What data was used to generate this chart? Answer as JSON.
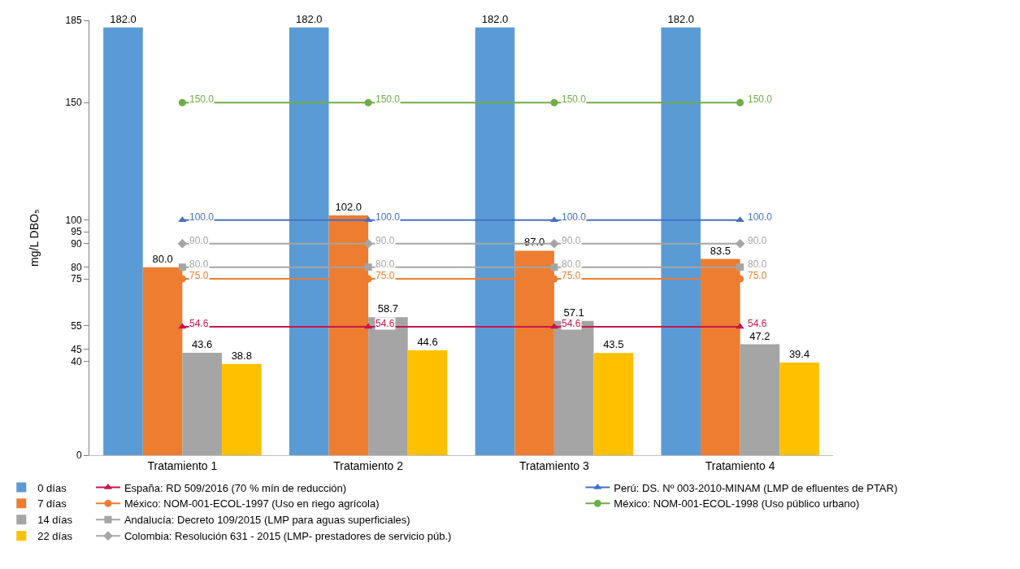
{
  "chart_data": {
    "type": "bar",
    "ylabel": "mg/L DBO₅",
    "categories": [
      "Tratamiento 1",
      "Tratamiento 2",
      "Tratamiento 3",
      "Tratamiento 4"
    ],
    "series": [
      {
        "name": "0 días",
        "color": "#5b9bd5",
        "values": [
          182.0,
          182.0,
          182.0,
          182.0
        ],
        "value_labels": [
          "182.0",
          "182.0",
          "182.0",
          "182.0"
        ]
      },
      {
        "name": "7 días",
        "color": "#ed7d31",
        "values": [
          80.0,
          102.0,
          87.0,
          83.5
        ],
        "value_labels": [
          "80.0",
          "102.0",
          "87.0",
          "83.5"
        ]
      },
      {
        "name": "14 días",
        "color": "#a5a5a5",
        "values": [
          43.6,
          58.7,
          57.1,
          47.2
        ],
        "value_labels": [
          "43.6",
          "58.7",
          "57.1",
          "47.2"
        ]
      },
      {
        "name": "22 días",
        "color": "#ffc000",
        "values": [
          38.8,
          44.6,
          43.5,
          39.4
        ],
        "value_labels": [
          "38.8",
          "44.6",
          "43.5",
          "39.4"
        ]
      },
      {
        "name": "España: RD 509/2016 (70 % mín de reducción)",
        "type": "line",
        "marker": "triangle",
        "color": "#c8164b",
        "values": [
          54.6,
          54.6,
          54.6,
          54.6
        ],
        "value_labels": [
          "54.6",
          "54.6",
          "54.6",
          "54.6"
        ]
      },
      {
        "name": "México: NOM-001-ECOL-1997 (Uso en riego agrícola)",
        "type": "line",
        "marker": "circle",
        "color": "#ed7d31",
        "values": [
          75.0,
          75.0,
          75.0,
          75.0
        ],
        "value_labels": [
          "75.0",
          "75.0",
          "75.0",
          "75.0"
        ]
      },
      {
        "name": "Andalucía: Decreto 109/2015 (LMP para aguas superficiales)",
        "type": "line",
        "marker": "square",
        "color": "#a5a5a5",
        "values": [
          80.0,
          80.0,
          80.0,
          80.0
        ],
        "value_labels": [
          "80.0",
          "80.0",
          "80.0",
          "80.0"
        ]
      },
      {
        "name": "Colombia: Resolución 631 - 2015 (LMP- prestadores de servicio púb.)",
        "type": "line",
        "marker": "diamond",
        "color": "#a5a5a5",
        "values": [
          90.0,
          90.0,
          90.0,
          90.0
        ],
        "value_labels": [
          "90.0",
          "90.0",
          "90.0",
          "90.0"
        ]
      },
      {
        "name": "Perú: DS. Nº 003-2010-MINAM (LMP de efluentes de PTAR)",
        "type": "line",
        "marker": "triangle",
        "color": "#4472c4",
        "values": [
          100.0,
          100.0,
          100.0,
          100.0
        ],
        "value_labels": [
          "100.0",
          "100.0",
          "100.0",
          "100.0"
        ]
      },
      {
        "name": "México: NOM-001-ECOL-1998 (Uso público urbano)",
        "type": "line",
        "marker": "circle",
        "color": "#70ad47",
        "values": [
          150.0,
          150.0,
          150.0,
          150.0
        ],
        "value_labels": [
          "150.0",
          "150.0",
          "150.0",
          "150.0"
        ]
      }
    ],
    "ylim": [
      0,
      185
    ],
    "yticks": [
      0,
      40,
      45,
      55,
      75,
      80,
      90,
      95,
      100,
      150,
      185
    ],
    "data_labels": true,
    "legend": "bottom"
  }
}
